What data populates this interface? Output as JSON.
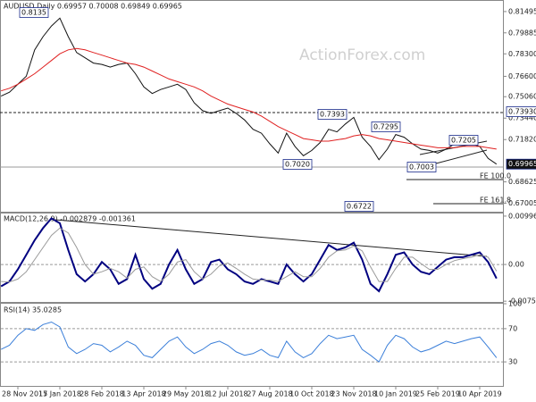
{
  "chart_data": [
    {
      "type": "line",
      "title": "AUDUSD,Daily 0.69957 0.70008 0.69849 0.69965",
      "watermark": "ActionForex.com",
      "categories": [
        null,
        null,
        "28 Nov 2017",
        null,
        null,
        null,
        null,
        "15 Jan 2018",
        null,
        null,
        null,
        null,
        "28 Feb 2018",
        null,
        null,
        null,
        null,
        "13 Apr 2018",
        null,
        null,
        null,
        null,
        "29 May 2018",
        null,
        null,
        null,
        null,
        "12 Jul 2018",
        null,
        null,
        null,
        null,
        "27 Aug 2018",
        null,
        null,
        null,
        null,
        "10 Oct 2018",
        null,
        null,
        null,
        null,
        "23 Nov 2018",
        null,
        null,
        null,
        null,
        "10 Jan 2019",
        null,
        null,
        null,
        null,
        "25 Feb 2019",
        null,
        null,
        null,
        null,
        "10 Apr 2019",
        null,
        null
      ],
      "series": [
        {
          "color": "#111111",
          "values": [
            0.751,
            0.754,
            0.76,
            0.766,
            0.786,
            0.796,
            0.804,
            0.81,
            0.796,
            0.784,
            0.78,
            0.776,
            0.775,
            0.773,
            0.775,
            0.776,
            0.768,
            0.758,
            0.753,
            0.756,
            0.758,
            0.76,
            0.756,
            0.746,
            0.74,
            0.738,
            0.74,
            0.742,
            0.738,
            0.733,
            0.726,
            0.723,
            0.715,
            0.708,
            0.723,
            0.713,
            0.706,
            0.71,
            0.716,
            0.726,
            0.724,
            0.73,
            0.735,
            0.72,
            0.713,
            0.703,
            0.711,
            0.722,
            0.72,
            0.715,
            0.711,
            0.71,
            0.708,
            0.711,
            0.715,
            0.716,
            0.715,
            0.713,
            0.704,
            0.69965
          ]
        },
        {
          "color": "#e02020",
          "values": [
            0.755,
            0.757,
            0.76,
            0.764,
            0.768,
            0.773,
            0.778,
            0.783,
            0.786,
            0.787,
            0.786,
            0.784,
            0.782,
            0.78,
            0.778,
            0.776,
            0.775,
            0.773,
            0.77,
            0.767,
            0.764,
            0.762,
            0.76,
            0.758,
            0.755,
            0.751,
            0.748,
            0.745,
            0.743,
            0.741,
            0.739,
            0.736,
            0.732,
            0.728,
            0.725,
            0.722,
            0.719,
            0.718,
            0.717,
            0.717,
            0.718,
            0.719,
            0.721,
            0.722,
            0.721,
            0.719,
            0.718,
            0.717,
            0.716,
            0.715,
            0.714,
            0.713,
            0.712,
            0.712,
            0.712,
            0.713,
            0.713,
            0.713,
            0.712,
            0.711
          ]
        }
      ],
      "ylim": [
        0.663,
        0.823
      ],
      "yticks": [
        {
          "value": 0.81495,
          "label": "0.81495"
        },
        {
          "value": 0.79885,
          "label": "0.79885"
        },
        {
          "value": 0.783,
          "label": "0.78300"
        },
        {
          "value": 0.766,
          "label": "0.76600"
        },
        {
          "value": 0.7506,
          "label": "0.75060"
        },
        {
          "value": 0.7344,
          "label": "0.73440"
        },
        {
          "value": 0.7182,
          "label": "0.71820"
        },
        {
          "value": 0.68625,
          "label": "0.68625"
        },
        {
          "value": 0.67005,
          "label": "0.67005"
        }
      ],
      "price_labels": [
        {
          "value": 0.7393,
          "label": "0.73930"
        },
        {
          "value": 0.69965,
          "label": "0.69965"
        }
      ],
      "annotations": [
        "0.8135",
        "0.7393",
        "0.7295",
        "0.7205",
        "0.7020",
        "0.7003",
        "0.6722",
        "FE 100.0",
        "FE 161.8"
      ]
    },
    {
      "type": "line",
      "title": "MACD(12,26,9) -0.002879 -0.001361",
      "series": [
        {
          "color": "#000080",
          "values": [
            -0.0045,
            -0.0035,
            -0.001,
            0.002,
            0.005,
            0.0075,
            0.0095,
            0.0085,
            0.003,
            -0.002,
            -0.0035,
            -0.002,
            0.0005,
            -0.001,
            -0.004,
            -0.003,
            0.002,
            -0.003,
            -0.005,
            -0.004,
            0,
            0.003,
            -0.001,
            -0.004,
            -0.003,
            0.0005,
            0.001,
            -0.001,
            -0.002,
            -0.0035,
            -0.004,
            -0.003,
            -0.0035,
            -0.004,
            0,
            -0.002,
            -0.0035,
            -0.002,
            0.001,
            0.004,
            0.003,
            0.0035,
            0.0045,
            0.001,
            -0.004,
            -0.0055,
            -0.002,
            0.002,
            0.0025,
            0,
            -0.0015,
            -0.002,
            -0.0005,
            0.001,
            0.0015,
            0.0015,
            0.002,
            0.0025,
            0.0005,
            -0.002879
          ]
        },
        {
          "color": "#9a9a9a",
          "values": [
            -0.0035,
            -0.0036,
            -0.003,
            -0.0015,
            0.001,
            0.0035,
            0.006,
            0.0075,
            0.0065,
            0.0035,
            0,
            -0.002,
            -0.0015,
            -0.0008,
            -0.0015,
            -0.0028,
            -0.001,
            -0.0005,
            -0.0025,
            -0.0035,
            -0.002,
            0.0005,
            0.001,
            -0.0015,
            -0.003,
            -0.002,
            -0.0003,
            0.0003,
            -0.0008,
            -0.002,
            -0.003,
            -0.0032,
            -0.0032,
            -0.0035,
            -0.0025,
            -0.0015,
            -0.0025,
            -0.0025,
            -0.0008,
            0.0015,
            0.0028,
            0.003,
            0.0038,
            0.0028,
            -0.0005,
            -0.0035,
            -0.0035,
            -0.0008,
            0.0015,
            0.0015,
            0.0002,
            -0.001,
            -0.001,
            0,
            0.0008,
            0.0012,
            0.0015,
            0.002,
            0.0015,
            -0.001361
          ]
        }
      ],
      "ylim": [
        -0.0079,
        0.0105
      ],
      "yticks": [
        0.009964,
        {
          "value": 0,
          "label": "0.00"
        },
        -0.00756
      ]
    },
    {
      "type": "line",
      "title": "RSI(14) 35.0285",
      "series": [
        {
          "color": "#3b7fd9",
          "values": [
            45,
            50,
            62,
            70,
            68,
            75,
            78,
            72,
            48,
            40,
            45,
            52,
            50,
            42,
            48,
            55,
            50,
            38,
            35,
            45,
            55,
            60,
            48,
            40,
            45,
            52,
            55,
            50,
            42,
            38,
            40,
            45,
            38,
            35,
            55,
            42,
            35,
            40,
            52,
            62,
            58,
            60,
            62,
            45,
            38,
            30,
            50,
            62,
            58,
            48,
            42,
            45,
            50,
            55,
            52,
            55,
            58,
            60,
            48,
            35.0285
          ]
        }
      ],
      "ylim": [
        0,
        100
      ],
      "yticks": [
        100,
        70,
        30
      ]
    }
  ]
}
